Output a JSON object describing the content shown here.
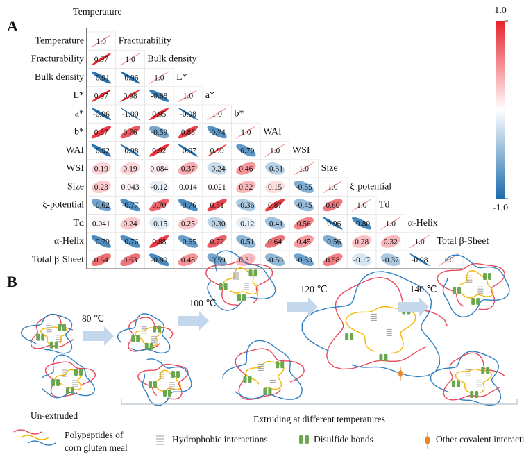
{
  "chart_data": {
    "type": "correlation",
    "label": "A",
    "variables": [
      "Temperature",
      "Fracturability",
      "Bulk density",
      "L*",
      "a*",
      "b*",
      "WAI",
      "WSI",
      "Size",
      "ξ-potential",
      "Td",
      "α-Helix",
      "Total β-Sheet"
    ],
    "values": [
      [
        1.0
      ],
      [
        0.97,
        1.0
      ],
      [
        -0.91,
        -0.96,
        1.0
      ],
      [
        0.97,
        0.98,
        -0.88,
        1.0
      ],
      [
        -0.96,
        -1.0,
        0.95,
        -0.98,
        1.0
      ],
      [
        0.87,
        0.76,
        -0.59,
        0.85,
        -0.74,
        1.0
      ],
      [
        -0.92,
        -0.98,
        0.92,
        -0.97,
        0.99,
        -0.7,
        1.0
      ],
      [
        0.19,
        0.19,
        0.084,
        0.37,
        -0.24,
        0.46,
        -0.31,
        1.0
      ],
      [
        0.23,
        0.043,
        -0.12,
        0.014,
        0.021,
        0.32,
        0.15,
        -0.55,
        1.0
      ],
      [
        -0.62,
        -0.77,
        0.7,
        -0.76,
        0.81,
        -0.36,
        0.87,
        -0.45,
        0.6,
        1.0
      ],
      [
        0.041,
        0.24,
        -0.15,
        0.25,
        -0.3,
        -0.12,
        -0.41,
        0.56,
        -0.96,
        -0.8,
        1.0
      ],
      [
        -0.79,
        -0.76,
        0.88,
        -0.65,
        0.72,
        -0.51,
        0.64,
        0.45,
        -0.56,
        0.28,
        0.32,
        1.0
      ],
      [
        0.64,
        0.63,
        -0.8,
        0.48,
        -0.59,
        0.31,
        -0.5,
        -0.63,
        0.58,
        -0.17,
        -0.37,
        -0.98,
        1.0
      ]
    ],
    "value_labels": [
      [
        "1.0"
      ],
      [
        "0.97",
        "1.0"
      ],
      [
        "-0.91",
        "-0.96",
        "1.0"
      ],
      [
        "0.97",
        "0.98",
        "-0.88",
        "1.0"
      ],
      [
        "-0.96",
        "-1.00",
        "0.95",
        "-0.98",
        "1.0"
      ],
      [
        "0.87",
        "0.76",
        "-0.59",
        "0.85",
        "-0.74",
        "1.0"
      ],
      [
        "-0.92",
        "-0.98",
        "0.92",
        "-0.97",
        "0.99",
        "-0.70",
        "1.0"
      ],
      [
        "0.19",
        "0.19",
        "0.084",
        "0.37",
        "-0.24",
        "0.46",
        "-0.31",
        "1.0"
      ],
      [
        "0.23",
        "0.043",
        "-0.12",
        "0.014",
        "0.021",
        "0.32",
        "0.15",
        "-0.55",
        "1.0"
      ],
      [
        "-0.62",
        "-0.77",
        "0.70",
        "-0.76",
        "0.81",
        "-0.36",
        "0.87",
        "-0.45",
        "0.60",
        "1.0"
      ],
      [
        "0.041",
        "0.24",
        "-0.15",
        "0.25",
        "-0.30",
        "-0.12",
        "-0.41",
        "0.56",
        "-0.96",
        "-0.80",
        "1.0"
      ],
      [
        "-0.79",
        "-0.76",
        "0.88",
        "-0.65",
        "0.72",
        "-0.51",
        "0.64",
        "0.45",
        "-0.56",
        "0.28",
        "0.32",
        "1.0"
      ],
      [
        "0.64",
        "0.63",
        "-0.80",
        "0.48",
        "-0.59",
        "0.31",
        "-0.50",
        "-0.63",
        "0.58",
        "-0.17",
        "-0.37",
        "-0.98",
        "1.0"
      ]
    ],
    "clim": [
      -1,
      1
    ],
    "cticks": [
      {
        "value": 1,
        "label": "1.0"
      },
      {
        "value": -1,
        "label": "-1.0"
      }
    ],
    "colors": {
      "positive": "#e8202a",
      "zero": "#ffffff",
      "negative": "#1b6cae"
    }
  },
  "diagram": {
    "label": "B",
    "steps": [
      "80 ℃",
      "100 ℃",
      "120 ℃",
      "140 ℃"
    ],
    "start_caption": "Un-extruded",
    "group_caption": "Extruding at different temperatures",
    "legend": [
      {
        "label": [
          "Polypeptides of",
          "corn gluten meal"
        ]
      },
      {
        "label": "Hydrophobic interactions"
      },
      {
        "label": "Disulfide bonds"
      },
      {
        "label": "Other covalent interactions"
      }
    ]
  }
}
